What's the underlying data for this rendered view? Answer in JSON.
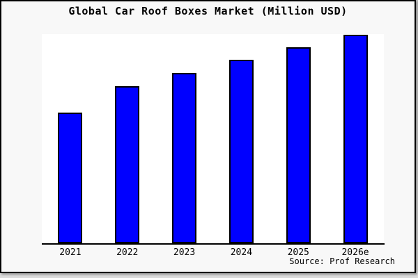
{
  "header": {
    "title": "Global Car Roof Boxes Market (Million USD)"
  },
  "footer": {
    "source_label": "Source: Prof Research"
  },
  "colors": {
    "bar_fill": "#0000ff",
    "bar_edge": "#000000",
    "plot_background": "#ffffff",
    "canvas_background": "#f8f8f8",
    "frame_border": "#000000"
  },
  "chart_data": {
    "type": "bar",
    "title": "Global Car Roof Boxes Market (Million USD)",
    "categories": [
      "2021",
      "2022",
      "2023",
      "2024",
      "2025",
      "2026e"
    ],
    "values": [
      62.7,
      75.3,
      81.7,
      88.0,
      94.0,
      100.0
    ],
    "values_note": "No numeric y-axis shown in image; values are relative bar heights with tallest bar (2026e) = 100",
    "xlabel": "",
    "ylabel": "",
    "ylim": [
      0,
      100
    ],
    "grid": false,
    "legend": null,
    "bar_color": "#0000ff",
    "bar_edge_color": "#000000",
    "source": "Prof Research"
  }
}
